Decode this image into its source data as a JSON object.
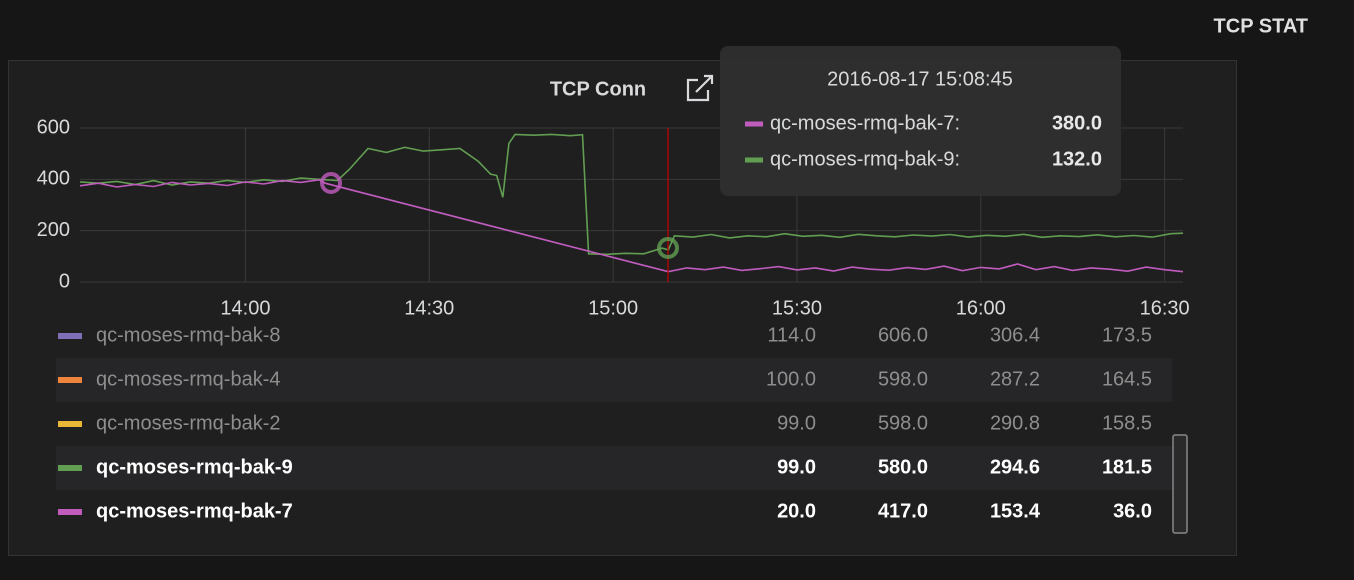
{
  "header": {
    "title": "TCP STAT"
  },
  "chart_data": {
    "type": "line",
    "title": "TCP Conn",
    "xlim": [
      "13:33",
      "16:33"
    ],
    "xticks": [
      "14:00",
      "14:30",
      "15:00",
      "15:30",
      "16:00",
      "16:30"
    ],
    "ylim": [
      0,
      600
    ],
    "yticks": [
      0,
      200,
      400,
      600
    ],
    "grid": true,
    "series": [
      {
        "name": "qc-moses-rmq-bak-9",
        "color": "#629e51",
        "x": [
          "13:33",
          "13:36",
          "13:39",
          "13:42",
          "13:45",
          "13:48",
          "13:51",
          "13:54",
          "13:57",
          "14:00",
          "14:03",
          "14:06",
          "14:09",
          "14:12",
          "14:15",
          "14:17",
          "14:20",
          "14:23",
          "14:26",
          "14:29",
          "14:32",
          "14:35",
          "14:38",
          "14:40",
          "14:41",
          "14:42",
          "14:43",
          "14:44",
          "14:47",
          "14:50",
          "14:53",
          "14:55",
          "14:56",
          "14:59",
          "15:02",
          "15:05",
          "15:08",
          "15:09",
          "15:10",
          "15:13",
          "15:16",
          "15:19",
          "15:22",
          "15:25",
          "15:28",
          "15:31",
          "15:34",
          "15:37",
          "15:40",
          "15:43",
          "15:46",
          "15:49",
          "15:52",
          "15:55",
          "15:58",
          "16:01",
          "16:04",
          "16:07",
          "16:10",
          "16:13",
          "16:16",
          "16:19",
          "16:22",
          "16:25",
          "16:28",
          "16:31",
          "16:33"
        ],
        "values": [
          390,
          385,
          392,
          380,
          395,
          378,
          390,
          385,
          396,
          388,
          398,
          392,
          405,
          400,
          395,
          440,
          520,
          505,
          525,
          510,
          515,
          520,
          470,
          420,
          415,
          330,
          540,
          575,
          572,
          575,
          570,
          574,
          110,
          108,
          112,
          110,
          132,
          125,
          180,
          175,
          185,
          172,
          180,
          176,
          188,
          178,
          182,
          174,
          186,
          180,
          176,
          183,
          179,
          185,
          175,
          182,
          178,
          186,
          174,
          180,
          177,
          184,
          176,
          181,
          175,
          188,
          190
        ]
      },
      {
        "name": "qc-moses-rmq-bak-7",
        "color": "#c15cbf",
        "x": [
          "13:33",
          "13:36",
          "13:39",
          "13:42",
          "13:45",
          "13:48",
          "13:51",
          "13:54",
          "13:57",
          "14:00",
          "14:03",
          "14:06",
          "14:09",
          "14:12",
          "14:13",
          "15:09",
          "15:12",
          "15:15",
          "15:18",
          "15:21",
          "15:24",
          "15:27",
          "15:30",
          "15:33",
          "15:36",
          "15:39",
          "15:42",
          "15:45",
          "15:48",
          "15:51",
          "15:54",
          "15:57",
          "16:00",
          "16:03",
          "16:06",
          "16:09",
          "16:12",
          "16:15",
          "16:18",
          "16:21",
          "16:24",
          "16:27",
          "16:30",
          "16:33"
        ],
        "values": [
          375,
          385,
          370,
          380,
          372,
          388,
          378,
          384,
          376,
          390,
          382,
          395,
          388,
          398,
          385,
          40,
          55,
          48,
          58,
          45,
          52,
          60,
          47,
          55,
          43,
          58,
          50,
          46,
          56,
          49,
          62,
          44,
          57,
          51,
          70,
          48,
          60,
          45,
          55,
          50,
          42,
          58,
          48,
          40
        ]
      }
    ]
  },
  "tooltip": {
    "title": "2016-08-17 15:08:45",
    "items": [
      {
        "label": "qc-moses-rmq-bak-7:",
        "value": "380.0",
        "color": "#c15cbf"
      },
      {
        "label": "qc-moses-rmq-bak-9:",
        "value": "132.0",
        "color": "#629e51"
      }
    ]
  },
  "legend": {
    "rows": [
      {
        "name": "qc-moses-rmq-bak-8",
        "color": "#806eb7",
        "stats": [
          "114.0",
          "606.0",
          "306.4",
          "173.5"
        ]
      },
      {
        "name": "qc-moses-rmq-bak-4",
        "color": "#ef843c",
        "stats": [
          "100.0",
          "598.0",
          "287.2",
          "164.5"
        ]
      },
      {
        "name": "qc-moses-rmq-bak-2",
        "color": "#eab839",
        "stats": [
          "99.0",
          "598.0",
          "290.8",
          "158.5"
        ]
      },
      {
        "stats": [
          "99.0",
          "580.0",
          "294.6",
          "181.5"
        ]
      },
      {
        "stats": [
          "20.0",
          "417.0",
          "153.4",
          "36.0"
        ]
      }
    ]
  }
}
